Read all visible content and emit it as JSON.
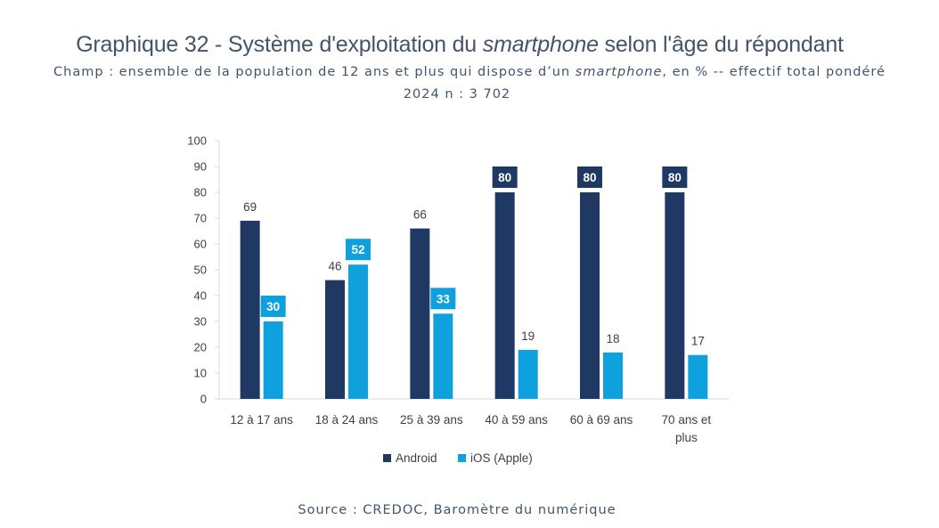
{
  "header": {
    "title_pre": "Graphique 32 - Système d'exploitation du ",
    "title_em": "smartphone",
    "title_post": " selon l'âge du répondant",
    "subtitle_pre": "Champ : ensemble de la population de 12 ans et plus qui dispose d’un ",
    "subtitle_em": "smartphone",
    "subtitle_post": ", en % -- effectif total pondéré",
    "subtitle_line2": "2024 n : 3 702"
  },
  "footer": {
    "source": "Source : CREDOC, Baromètre du numérique"
  },
  "chart_data": {
    "type": "bar",
    "title": "",
    "xlabel": "",
    "ylabel": "",
    "ylim": [
      0,
      100
    ],
    "yticks": [
      0,
      10,
      20,
      30,
      40,
      50,
      60,
      70,
      80,
      90,
      100
    ],
    "categories": [
      "12 à 17 ans",
      "18 à 24 ans",
      "25 à 39 ans",
      "40 à 59 ans",
      "60 à 69 ans",
      "70 ans et plus"
    ],
    "category_lines": [
      [
        "12 à 17 ans"
      ],
      [
        "18 à 24 ans"
      ],
      [
        "25 à 39 ans"
      ],
      [
        "40 à 59 ans"
      ],
      [
        "60 à 69 ans"
      ],
      [
        "70 ans et",
        "plus"
      ]
    ],
    "series": [
      {
        "name": "Android",
        "color": "#1f3864",
        "values": [
          69,
          46,
          66,
          80,
          80,
          80
        ],
        "label_boxed": [
          false,
          false,
          false,
          true,
          true,
          true
        ]
      },
      {
        "name": "iOS (Apple)",
        "color": "#0ea1dd",
        "values": [
          30,
          52,
          33,
          19,
          18,
          17
        ],
        "label_boxed": [
          true,
          true,
          true,
          false,
          false,
          false
        ]
      }
    ],
    "grid": false,
    "legend_position": "bottom"
  }
}
